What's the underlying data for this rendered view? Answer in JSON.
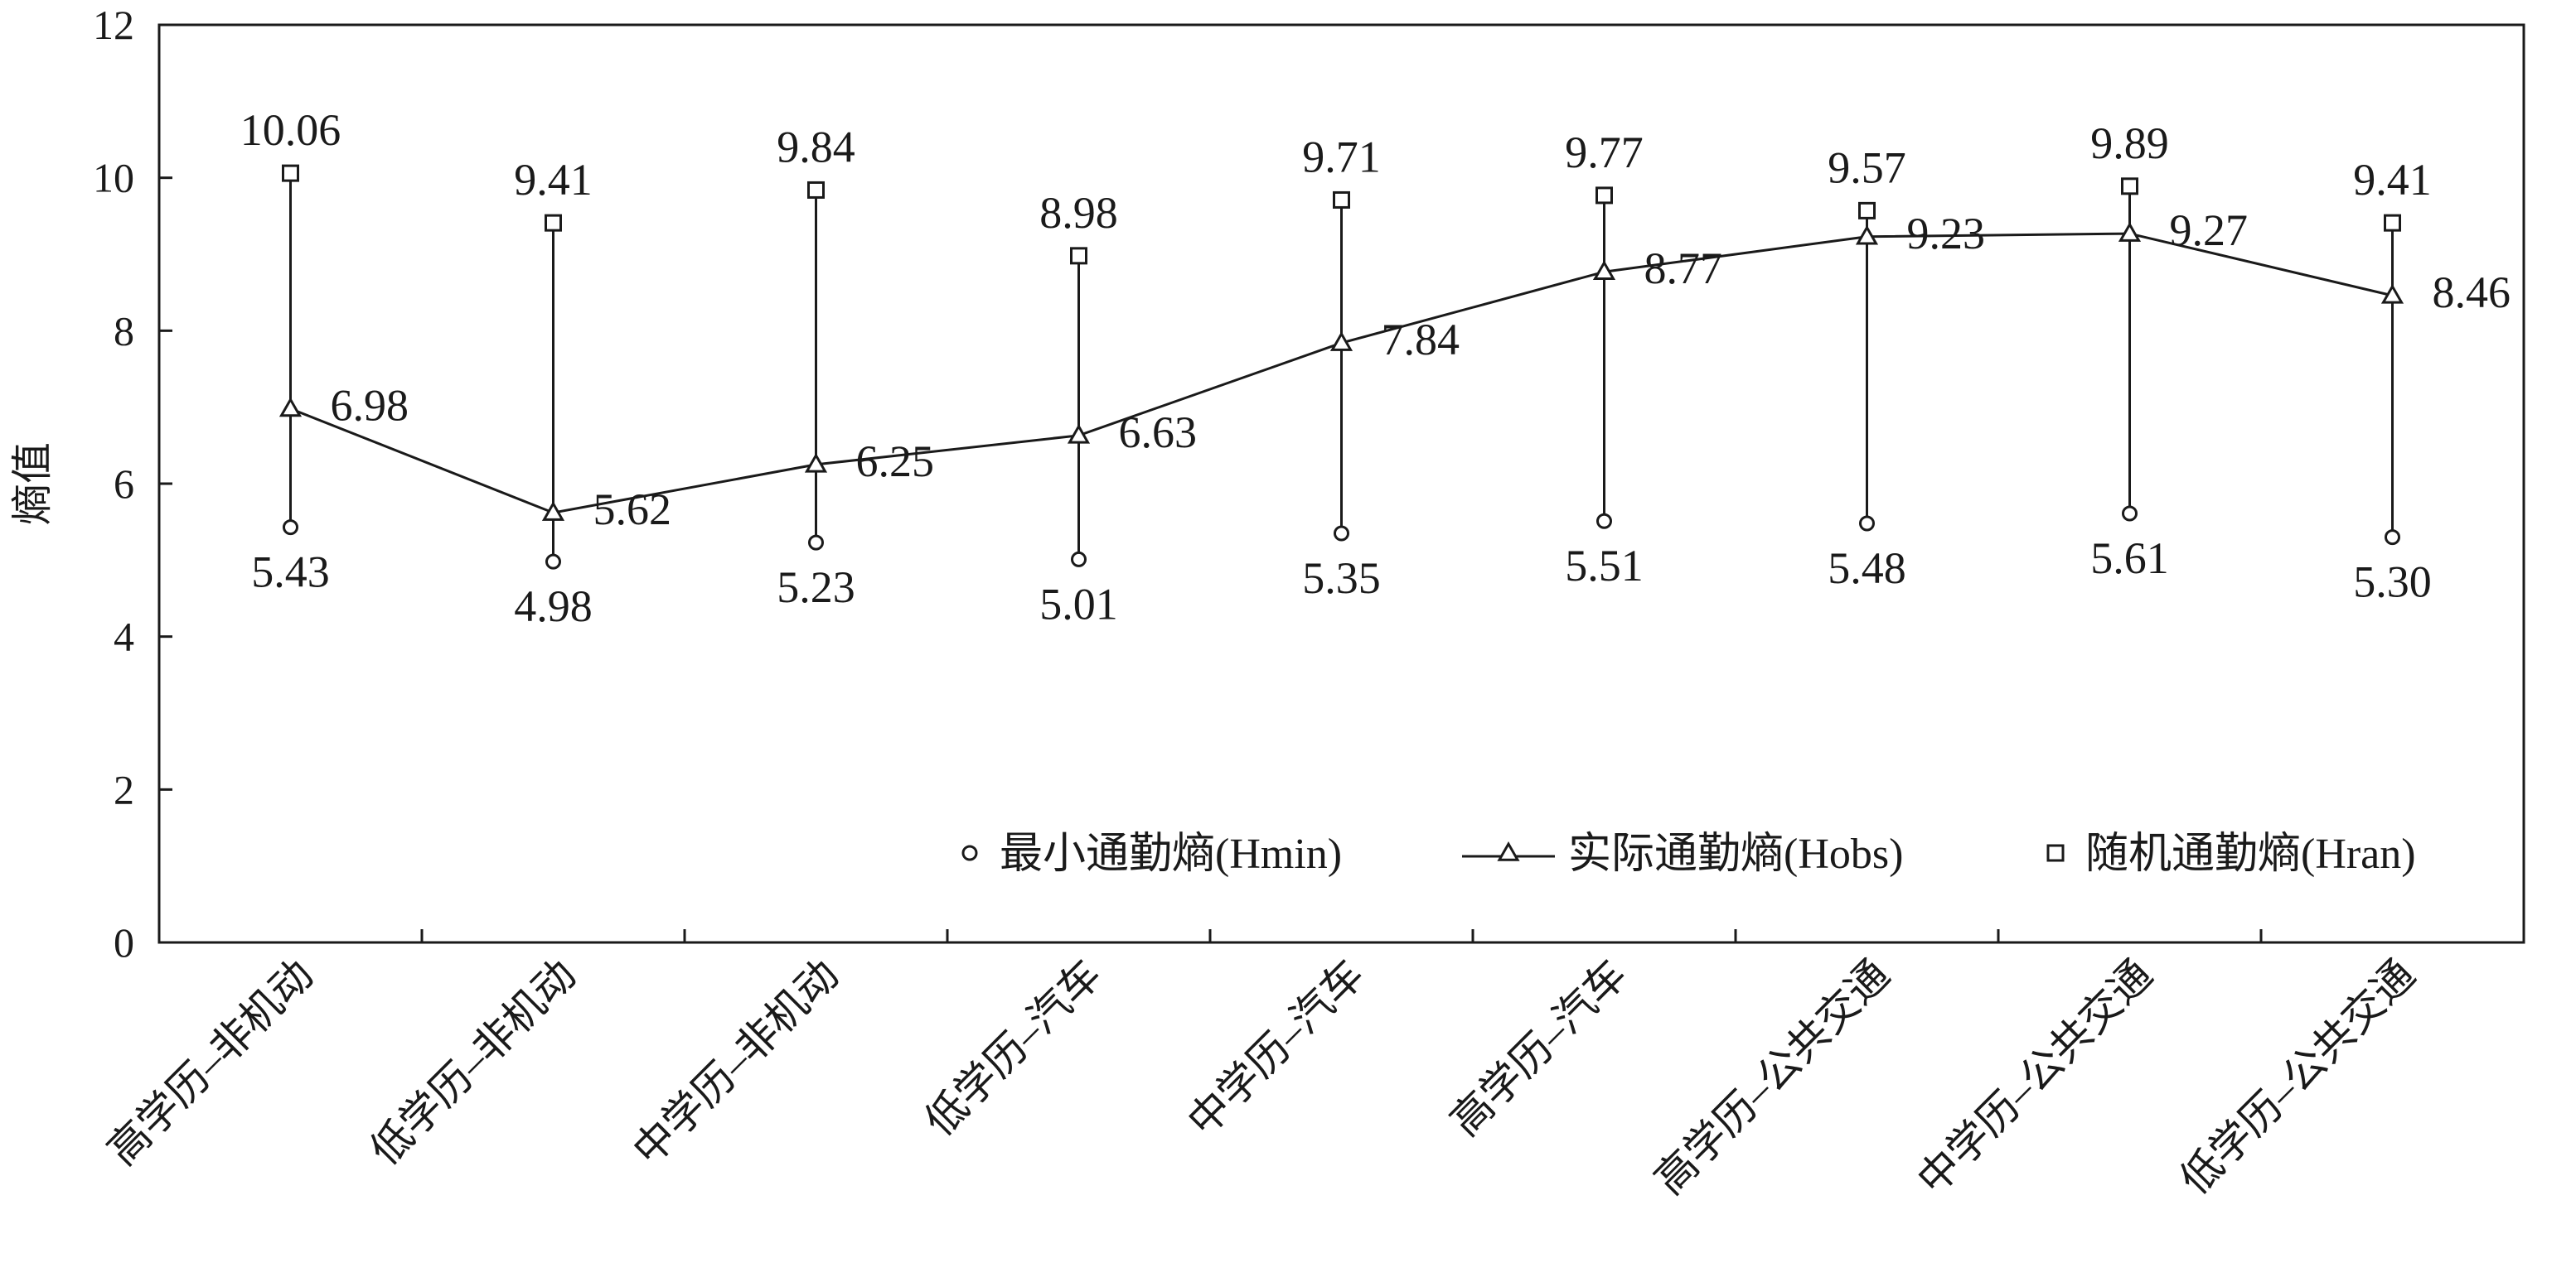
{
  "chart_data": {
    "type": "line",
    "title": "",
    "xlabel": "",
    "ylabel": "熵值",
    "ylim": [
      0,
      12
    ],
    "yticks": [
      "0",
      "2",
      "4",
      "6",
      "8",
      "10",
      "12"
    ],
    "grid": false,
    "legend_position": "bottom-right",
    "categories": [
      "高学历–非机动",
      "低学历–非机动",
      "中学历–非机动",
      "低学历–汽车",
      "中学历–汽车",
      "高学历–汽车",
      "高学历–公共交通",
      "中学历–公共交通",
      "低学历–公共交通"
    ],
    "series": [
      {
        "name": "最小通勤熵(Hmin)",
        "marker": "circle",
        "values": [
          5.43,
          4.98,
          5.23,
          5.01,
          5.35,
          5.51,
          5.48,
          5.61,
          5.3
        ],
        "labels": [
          "5.43",
          "4.98",
          "5.23",
          "5.01",
          "5.35",
          "5.51",
          "5.48",
          "5.61",
          "5.30"
        ]
      },
      {
        "name": "实际通勤熵(Hobs)",
        "marker": "triangle",
        "values": [
          6.98,
          5.62,
          6.25,
          6.63,
          7.84,
          8.77,
          9.23,
          9.27,
          8.46
        ],
        "labels": [
          "6.98",
          "5.62",
          "6.25",
          "6.63",
          "7.84",
          "8.77",
          "9.23",
          "9.27",
          "8.46"
        ]
      },
      {
        "name": "随机通勤熵(Hran)",
        "marker": "square",
        "values": [
          10.06,
          9.41,
          9.84,
          8.98,
          9.71,
          9.77,
          9.57,
          9.89,
          9.41
        ],
        "labels": [
          "10.06",
          "9.41",
          "9.84",
          "8.98",
          "9.71",
          "9.77",
          "9.57",
          "9.89",
          "9.41"
        ]
      }
    ],
    "colors": {
      "ink": "#1a1a1a",
      "background": "#ffffff"
    }
  }
}
